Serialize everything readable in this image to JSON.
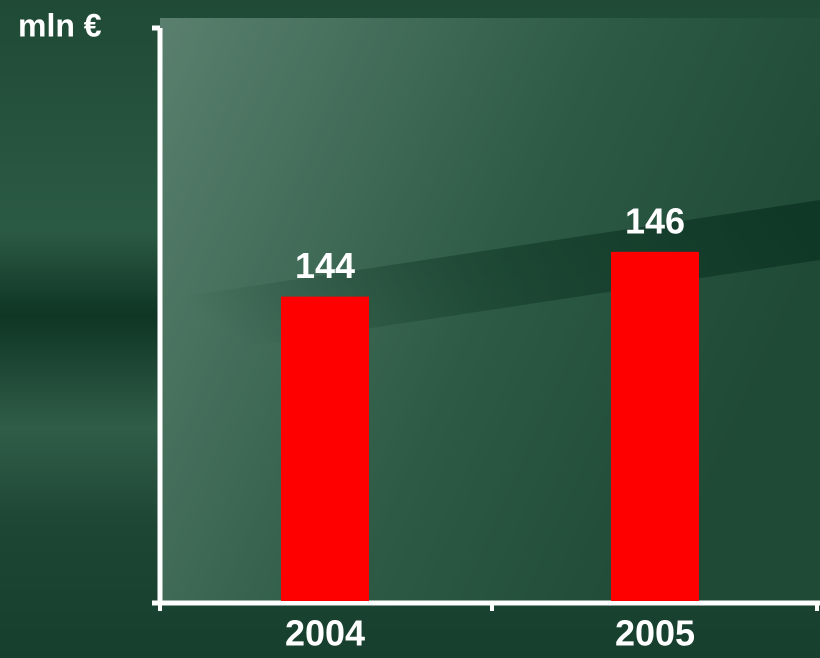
{
  "chart_data": {
    "type": "bar",
    "y_axis_label": "mln €",
    "categories": [
      "2004",
      "2005"
    ],
    "values": [
      144,
      146
    ],
    "color": "#ff0000",
    "ylim": [
      130.4,
      156
    ],
    "yticks": [],
    "grid": false
  }
}
